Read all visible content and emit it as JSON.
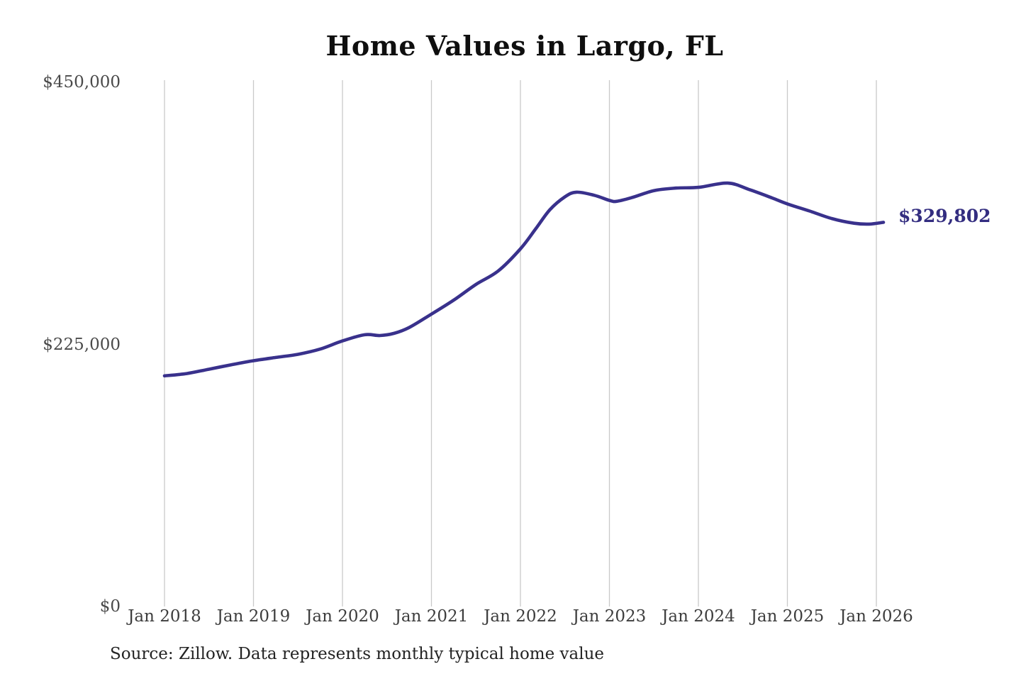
{
  "chart_data": {
    "type": "line",
    "title": "Home Values in Largo, FL",
    "source_note": "Source: Zillow. Data represents monthly typical home value",
    "xlabel": "",
    "ylabel": "",
    "x_range": [
      2018,
      2026.35
    ],
    "y_range": [
      0,
      450000
    ],
    "grid": "vertical-only",
    "legend_position": "none",
    "y_ticks": [
      {
        "value": 450000,
        "label": "$450,000"
      },
      {
        "value": 225000,
        "label": "$225,000"
      },
      {
        "value": 0,
        "label": "$0"
      }
    ],
    "x_ticks": [
      {
        "year": 2018,
        "label": "Jan 2018"
      },
      {
        "year": 2019,
        "label": "Jan 2019"
      },
      {
        "year": 2020,
        "label": "Jan 2020"
      },
      {
        "year": 2021,
        "label": "Jan 2021"
      },
      {
        "year": 2022,
        "label": "Jan 2022"
      },
      {
        "year": 2023,
        "label": "Jan 2023"
      },
      {
        "year": 2024,
        "label": "Jan 2024"
      },
      {
        "year": 2025,
        "label": "Jan 2025"
      },
      {
        "year": 2026,
        "label": "Jan 2026"
      }
    ],
    "annotation": {
      "label": "$329,802",
      "x": 2026.08,
      "value": 329802,
      "color": "#332d80"
    },
    "series": [
      {
        "name": "Monthly typical home value",
        "color": "#39318c",
        "points": [
          [
            2018.0,
            198000
          ],
          [
            2018.25,
            200000
          ],
          [
            2018.5,
            203700
          ],
          [
            2018.75,
            207500
          ],
          [
            2019.0,
            211000
          ],
          [
            2019.25,
            213800
          ],
          [
            2019.5,
            216500
          ],
          [
            2019.75,
            221000
          ],
          [
            2020.0,
            228000
          ],
          [
            2020.25,
            233300
          ],
          [
            2020.42,
            232600
          ],
          [
            2020.58,
            234500
          ],
          [
            2020.75,
            239500
          ],
          [
            2021.0,
            251000
          ],
          [
            2021.25,
            263000
          ],
          [
            2021.5,
            276500
          ],
          [
            2021.75,
            288000
          ],
          [
            2022.0,
            307000
          ],
          [
            2022.17,
            324000
          ],
          [
            2022.33,
            340500
          ],
          [
            2022.5,
            351700
          ],
          [
            2022.63,
            355700
          ],
          [
            2022.83,
            353000
          ],
          [
            2023.0,
            348600
          ],
          [
            2023.08,
            347800
          ],
          [
            2023.25,
            351000
          ],
          [
            2023.5,
            357000
          ],
          [
            2023.75,
            359200
          ],
          [
            2024.0,
            359800
          ],
          [
            2024.33,
            363500
          ],
          [
            2024.58,
            357700
          ],
          [
            2024.83,
            350700
          ],
          [
            2025.0,
            345600
          ],
          [
            2025.25,
            339500
          ],
          [
            2025.5,
            333000
          ],
          [
            2025.75,
            329000
          ],
          [
            2025.92,
            328300
          ],
          [
            2026.08,
            329802
          ]
        ]
      }
    ],
    "appearance": {
      "background": "#ffffff",
      "gridline_color": "#c9c9c9",
      "y_label_color": "#4a4a4a",
      "x_label_color": "#3d3d3d",
      "title_color": "#0f0f0f",
      "source_color": "#232323",
      "line_width": 4.6
    }
  }
}
